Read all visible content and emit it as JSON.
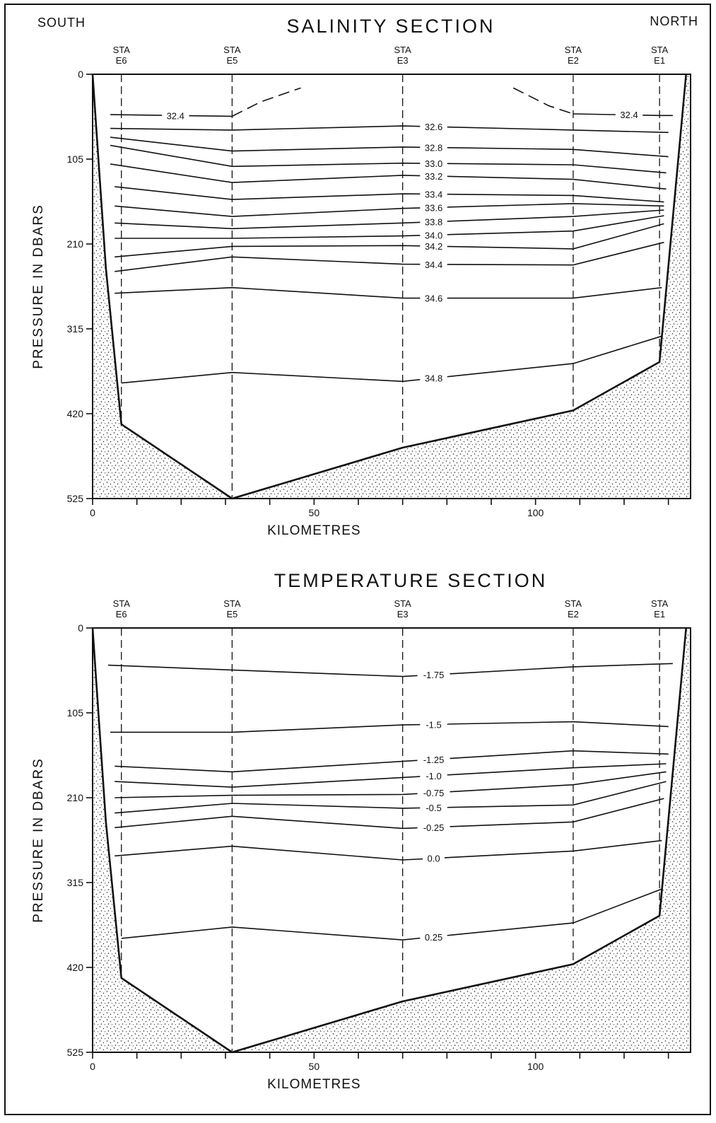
{
  "corners": {
    "left": "SOUTH",
    "right": "NORTH"
  },
  "xlabel": "KILOMETRES",
  "ylabel": "PRESSURE IN DBARS",
  "chart_data": [
    {
      "type": "line",
      "title": "SALINITY SECTION",
      "xlabel": "KILOMETRES",
      "ylabel": "PRESSURE IN DBARS",
      "xlim": [
        0,
        135
      ],
      "ylim": [
        525,
        0
      ],
      "x_ticks": [
        0,
        50,
        100
      ],
      "y_ticks": [
        0,
        105,
        210,
        315,
        420,
        525
      ],
      "stations": [
        {
          "top": "STA",
          "name": "E6",
          "km": 6.5
        },
        {
          "top": "STA",
          "name": "E5",
          "km": 31.5
        },
        {
          "top": "STA",
          "name": "E3",
          "km": 70
        },
        {
          "top": "STA",
          "name": "E2",
          "km": 108.5
        },
        {
          "top": "STA",
          "name": "E1",
          "km": 128
        }
      ],
      "bottom_profile": [
        [
          0,
          0
        ],
        [
          3,
          240
        ],
        [
          6.5,
          433
        ],
        [
          31.5,
          525
        ],
        [
          70,
          462
        ],
        [
          108.5,
          416
        ],
        [
          128,
          356
        ],
        [
          134,
          0
        ]
      ],
      "series": [
        {
          "name": "32.4",
          "label": "32.4",
          "points": [
            [
              4,
              50
            ],
            [
              31.5,
              52
            ],
            [
              38,
              34
            ],
            [
              47,
              17
            ]
          ],
          "dash_from": 1
        },
        {
          "name": "32.4",
          "label": "32.4",
          "points": [
            [
              95,
              17
            ],
            [
              103,
              39
            ],
            [
              108.5,
              49
            ],
            [
              128,
              51
            ],
            [
              131,
              51
            ]
          ],
          "dash_until": 2
        },
        {
          "name": "32.6",
          "label": "32.6",
          "points": [
            [
              4,
              67
            ],
            [
              31.5,
              69
            ],
            [
              70,
              64
            ],
            [
              108.5,
              69
            ],
            [
              130,
              72
            ]
          ]
        },
        {
          "name": "32.8",
          "label": "32.8",
          "points": [
            [
              4,
              78
            ],
            [
              31.5,
              95
            ],
            [
              70,
              90
            ],
            [
              108.5,
              93
            ],
            [
              130,
              102
            ]
          ]
        },
        {
          "name": "33.0",
          "label": "33.0",
          "points": [
            [
              4,
              88
            ],
            [
              31.5,
              114
            ],
            [
              70,
              110
            ],
            [
              108.5,
              112
            ],
            [
              129.5,
              122
            ]
          ]
        },
        {
          "name": "33.2",
          "label": "33.2",
          "points": [
            [
              4,
              111
            ],
            [
              31.5,
              134
            ],
            [
              70,
              125
            ],
            [
              108.5,
              130
            ],
            [
              129.5,
              142
            ]
          ]
        },
        {
          "name": "33.4",
          "label": "33.4",
          "points": [
            [
              5,
              139
            ],
            [
              31.5,
              155
            ],
            [
              70,
              148
            ],
            [
              108.5,
              150
            ],
            [
              129,
              158
            ]
          ]
        },
        {
          "name": "33.6",
          "label": "33.6",
          "points": [
            [
              5,
              163
            ],
            [
              31.5,
              176
            ],
            [
              70,
              166
            ],
            [
              108.5,
              160
            ],
            [
              129,
              163
            ]
          ]
        },
        {
          "name": "33.8",
          "label": "33.8",
          "points": [
            [
              5,
              184
            ],
            [
              31.5,
              191
            ],
            [
              70,
              184
            ],
            [
              108.5,
              176
            ],
            [
              129,
              168
            ]
          ]
        },
        {
          "name": "34.0",
          "label": "34.0",
          "points": [
            [
              5,
              203
            ],
            [
              31.5,
              203
            ],
            [
              70,
              200
            ],
            [
              108.5,
              194
            ],
            [
              129,
              175
            ]
          ]
        },
        {
          "name": "34.2",
          "label": "34.2",
          "points": [
            [
              5,
              226
            ],
            [
              31.5,
              213
            ],
            [
              70,
              212
            ],
            [
              108.5,
              216
            ],
            [
              129,
              185
            ]
          ]
        },
        {
          "name": "34.4",
          "label": "34.4",
          "points": [
            [
              5,
              244
            ],
            [
              31.5,
              226
            ],
            [
              70,
              235
            ],
            [
              108.5,
              236
            ],
            [
              129,
              208
            ]
          ]
        },
        {
          "name": "34.6",
          "label": "34.6",
          "points": [
            [
              5,
              271
            ],
            [
              31.5,
              264
            ],
            [
              70,
              277
            ],
            [
              108.5,
              277
            ],
            [
              128.5,
              264
            ]
          ]
        },
        {
          "name": "34.8",
          "label": "34.8",
          "points": [
            [
              6.5,
              382
            ],
            [
              31.5,
              369
            ],
            [
              70,
              380
            ],
            [
              108.5,
              358
            ],
            [
              128.5,
              324
            ]
          ]
        }
      ]
    },
    {
      "type": "line",
      "title": "TEMPERATURE SECTION",
      "xlabel": "KILOMETRES",
      "ylabel": "PRESSURE IN DBARS",
      "xlim": [
        0,
        135
      ],
      "ylim": [
        525,
        0
      ],
      "x_ticks": [
        0,
        50,
        100
      ],
      "y_ticks": [
        0,
        105,
        210,
        315,
        420,
        525
      ],
      "stations": [
        {
          "top": "STA",
          "name": "E6",
          "km": 6.5
        },
        {
          "top": "STA",
          "name": "E5",
          "km": 31.5
        },
        {
          "top": "STA",
          "name": "E3",
          "km": 70
        },
        {
          "top": "STA",
          "name": "E2",
          "km": 108.5
        },
        {
          "top": "STA",
          "name": "E1",
          "km": 128
        }
      ],
      "bottom_profile": [
        [
          0,
          0
        ],
        [
          3,
          240
        ],
        [
          6.5,
          433
        ],
        [
          31.5,
          525
        ],
        [
          70,
          462
        ],
        [
          108.5,
          416
        ],
        [
          128,
          356
        ],
        [
          134,
          0
        ]
      ],
      "series": [
        {
          "name": "-1.75",
          "label": "-1.75",
          "points": [
            [
              3.5,
              46
            ],
            [
              31.5,
              52
            ],
            [
              70,
              60
            ],
            [
              108.5,
              48
            ],
            [
              131,
              44
            ]
          ]
        },
        {
          "name": "-1.5",
          "label": "-1.5",
          "points": [
            [
              4,
              129
            ],
            [
              31.5,
              129
            ],
            [
              70,
              120
            ],
            [
              108.5,
              116
            ],
            [
              130,
              122
            ]
          ]
        },
        {
          "name": "-1.25",
          "label": "-1.25",
          "points": [
            [
              5,
              171
            ],
            [
              31.5,
              178
            ],
            [
              70,
              165
            ],
            [
              108.5,
              152
            ],
            [
              130,
              156
            ]
          ]
        },
        {
          "name": "-1.0",
          "label": "-1.0",
          "points": [
            [
              5,
              190
            ],
            [
              31.5,
              197
            ],
            [
              70,
              185
            ],
            [
              108.5,
              173
            ],
            [
              129.5,
              168
            ]
          ]
        },
        {
          "name": "-0.75",
          "label": "-0.75",
          "points": [
            [
              5,
              210
            ],
            [
              31.5,
              207
            ],
            [
              70,
              206
            ],
            [
              108.5,
              194
            ],
            [
              129.5,
              178
            ]
          ]
        },
        {
          "name": "-0.5",
          "label": "-0.5",
          "points": [
            [
              5,
              229
            ],
            [
              31.5,
              217
            ],
            [
              70,
              223
            ],
            [
              108.5,
              219
            ],
            [
              129.5,
              190
            ]
          ]
        },
        {
          "name": "-0.25",
          "label": "-0.25",
          "points": [
            [
              5,
              247
            ],
            [
              31.5,
              233
            ],
            [
              70,
              248
            ],
            [
              108.5,
              240
            ],
            [
              129,
              211
            ]
          ]
        },
        {
          "name": "0.0",
          "label": "0.0",
          "points": [
            [
              5,
              282
            ],
            [
              31.5,
              270
            ],
            [
              70,
              287
            ],
            [
              108.5,
              276
            ],
            [
              128.5,
              263
            ]
          ]
        },
        {
          "name": "0.25",
          "label": "0.25",
          "points": [
            [
              6.5,
              384
            ],
            [
              31.5,
              370
            ],
            [
              70,
              386
            ],
            [
              108.5,
              365
            ],
            [
              128.5,
              323
            ]
          ]
        }
      ]
    }
  ]
}
